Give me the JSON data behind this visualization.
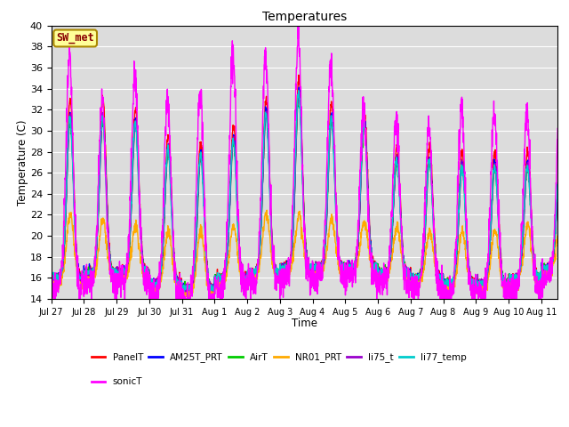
{
  "title": "Temperatures",
  "xlabel": "Time",
  "ylabel": "Temperature (C)",
  "ylim": [
    14,
    40
  ],
  "yticks": [
    14,
    16,
    18,
    20,
    22,
    24,
    26,
    28,
    30,
    32,
    34,
    36,
    38,
    40
  ],
  "background_color": "#dcdcdc",
  "series_colors": {
    "PanelT": "#ff0000",
    "AM25T_PRT": "#0000ff",
    "AirT": "#00cc00",
    "NR01_PRT": "#ffaa00",
    "li75_t": "#9900cc",
    "li77_temp": "#00cccc",
    "sonicT": "#ff00ff"
  },
  "legend_box": {
    "label": "SW_met",
    "facecolor": "#ffff99",
    "edgecolor": "#aa8800",
    "textcolor": "#880000"
  },
  "tick_labels": [
    "Jul 27",
    "Jul 28",
    "Jul 29",
    "Jul 30",
    "Jul 31",
    "Aug 1",
    "Aug 2",
    "Aug 3",
    "Aug 4",
    "Aug 5",
    "Aug 6",
    "Aug 7",
    "Aug 8",
    "Aug 9",
    "Aug 10",
    "Aug 11"
  ],
  "n_days": 15.5,
  "points_per_day": 144
}
